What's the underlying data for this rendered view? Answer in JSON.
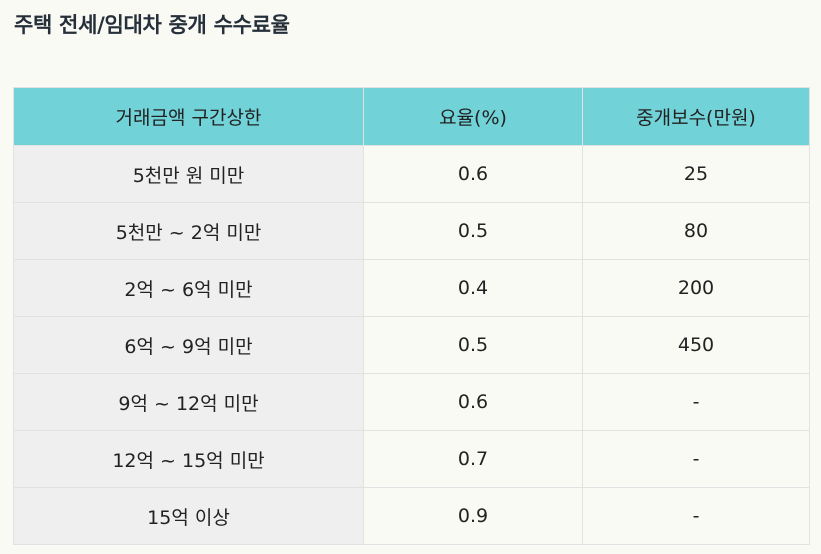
{
  "title": "주택 전세/임대차 중개 수수료율",
  "table": {
    "headers": [
      "거래금액 구간상한",
      "요율(%)",
      "중개보수(만원)"
    ],
    "rows": [
      [
        "5천만 원 미만",
        "0.6",
        "25"
      ],
      [
        "5천만 ~ 2억 미만",
        "0.5",
        "80"
      ],
      [
        "2억 ~ 6억 미만",
        "0.4",
        "200"
      ],
      [
        "6억 ~ 9억 미만",
        "0.5",
        "450"
      ],
      [
        "9억 ~ 12억 미만",
        "0.6",
        "-"
      ],
      [
        "12억 ~ 15억 미만",
        "0.7",
        "-"
      ],
      [
        "15억 이상",
        "0.9",
        "-"
      ]
    ]
  },
  "colors": {
    "header_bg": "#71d3d8",
    "first_col_bg": "#efefef",
    "page_bg": "#fafaf5"
  }
}
